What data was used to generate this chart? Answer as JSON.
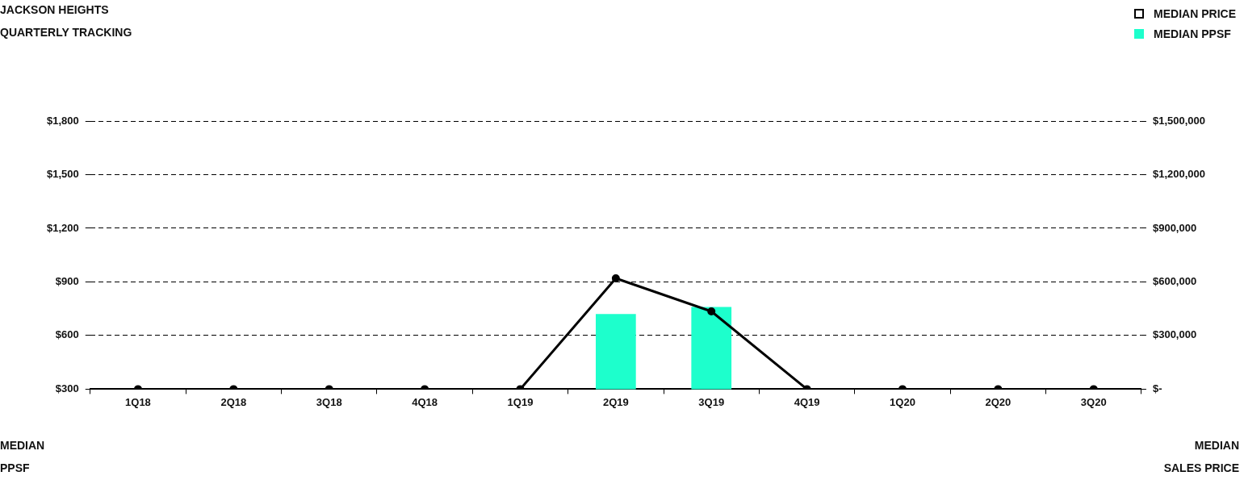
{
  "chart_data": {
    "type": "bar",
    "title": "JACKSON HEIGHTS",
    "subtitle": "QUARTERLY TRACKING",
    "ylabel": "MEDIAN PPSF",
    "y2label": "MEDIAN SALES PRICE",
    "categories": [
      "1Q18",
      "2Q18",
      "3Q18",
      "4Q18",
      "1Q19",
      "2Q19",
      "3Q19",
      "4Q19",
      "1Q20",
      "2Q20",
      "3Q20"
    ],
    "series": [
      {
        "name": "MEDIAN PRICE",
        "type": "line",
        "axis": "y2",
        "color": "#000000",
        "values": [
          0,
          0,
          0,
          0,
          0,
          620000,
          435000,
          0,
          0,
          0,
          0
        ]
      },
      {
        "name": "MEDIAN PPSF",
        "type": "bar",
        "color": "#1dffcc",
        "values": [
          null,
          null,
          null,
          null,
          null,
          720,
          760,
          null,
          null,
          null,
          null
        ]
      }
    ],
    "ylim": [
      300,
      1800
    ],
    "yticks": [
      {
        "value": 300,
        "label": "$300"
      },
      {
        "value": 600,
        "label": "$600"
      },
      {
        "value": 900,
        "label": "$900"
      },
      {
        "value": 1200,
        "label": "$1,200"
      },
      {
        "value": 1500,
        "label": "$1,500"
      },
      {
        "value": 1800,
        "label": "$1,800"
      }
    ],
    "y2lim": [
      0,
      1500000
    ],
    "y2ticks": [
      {
        "value": 0,
        "label": "$-"
      },
      {
        "value": 300000,
        "label": "$300,000"
      },
      {
        "value": 600000,
        "label": "$600,000"
      },
      {
        "value": 900000,
        "label": "$900,000"
      },
      {
        "value": 1200000,
        "label": "$1,200,000"
      },
      {
        "value": 1500000,
        "label": "$1,500,000"
      }
    ],
    "grid": "y",
    "legend": "top right",
    "marker": "circle",
    "line_style": "solid"
  }
}
